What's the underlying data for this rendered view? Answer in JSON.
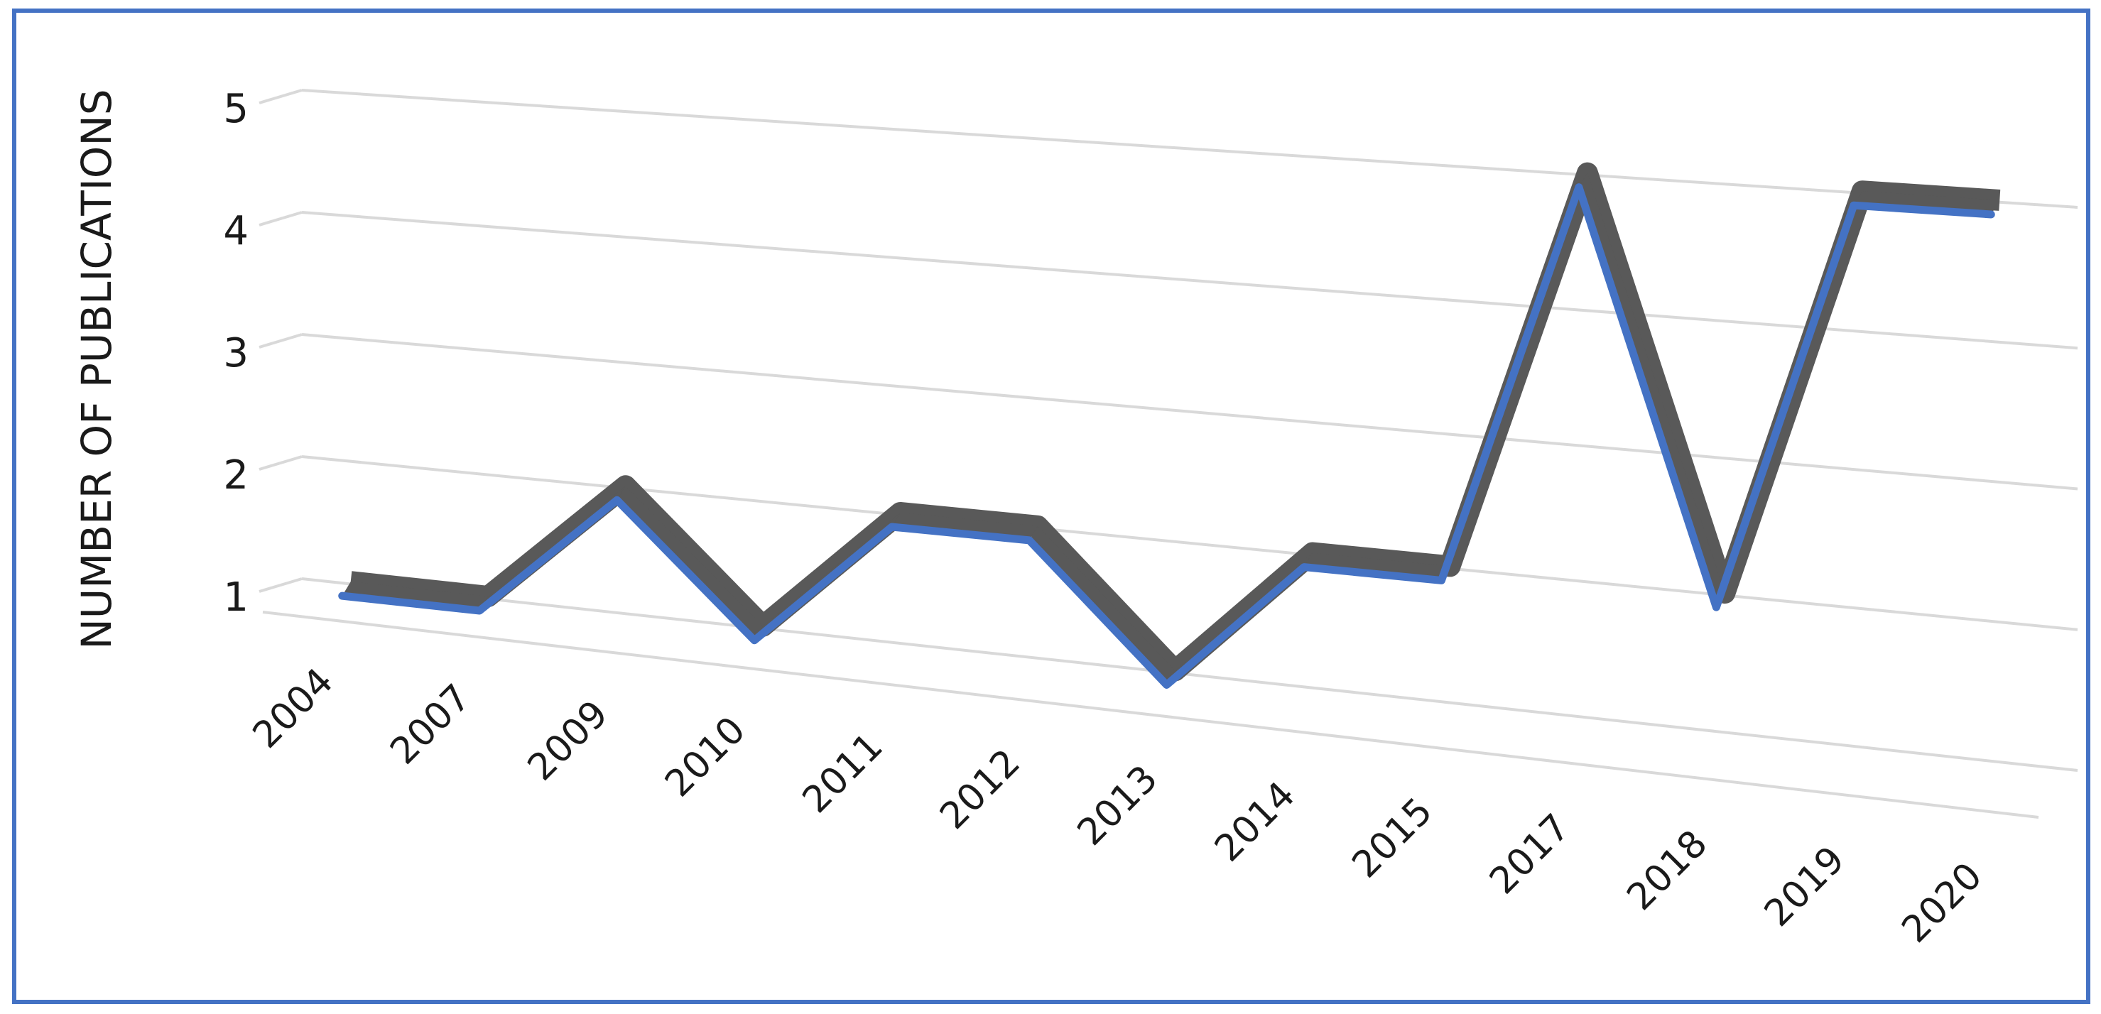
{
  "chart_data": {
    "type": "line",
    "y_label": "NUMBER OF PUBLICATIONS",
    "categories": [
      "2004",
      "2007",
      "2009",
      "2010",
      "2011",
      "2012",
      "2013",
      "2014",
      "2015",
      "2017",
      "2018",
      "2019",
      "2020"
    ],
    "values": [
      1,
      1,
      2,
      1,
      2,
      2,
      1,
      2,
      2,
      5,
      2,
      5,
      5
    ],
    "color": "#4472c4",
    "depth_color": "#595959",
    "ylim": [
      1,
      5
    ],
    "yticks": [
      1,
      2,
      3,
      4,
      5
    ],
    "grid": true
  }
}
